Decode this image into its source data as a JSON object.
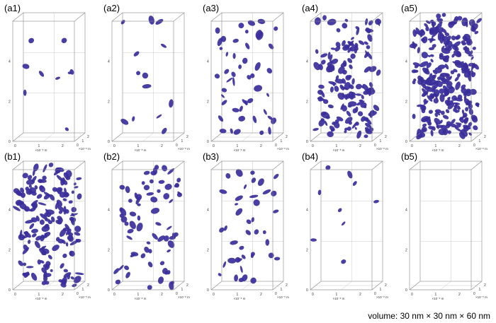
{
  "figure": {
    "panels": [
      {
        "label": "(a1)",
        "blobs": 9
      },
      {
        "label": "(a2)",
        "blobs": 13
      },
      {
        "label": "(a3)",
        "blobs": 48
      },
      {
        "label": "(a4)",
        "blobs": 150
      },
      {
        "label": "(a5)",
        "blobs": 280
      },
      {
        "label": "(b1)",
        "blobs": 170
      },
      {
        "label": "(b2)",
        "blobs": 70
      },
      {
        "label": "(b3)",
        "blobs": 42
      },
      {
        "label": "(b4)",
        "blobs": 9
      },
      {
        "label": "(b5)",
        "blobs": 0
      }
    ],
    "z_ticks": [
      "0",
      "2",
      "4"
    ],
    "x_ticks": [
      "0",
      "1",
      "2"
    ],
    "y_ticks": [
      "0",
      "1",
      "2"
    ],
    "x_unit": "×10⁻⁸ m",
    "y_unit": "×10⁻⁸ m",
    "blob_color": "#3a2e9a",
    "frame_color": "#888888"
  },
  "caption": "volume: 30 nm × 30 nm × 60 nm"
}
